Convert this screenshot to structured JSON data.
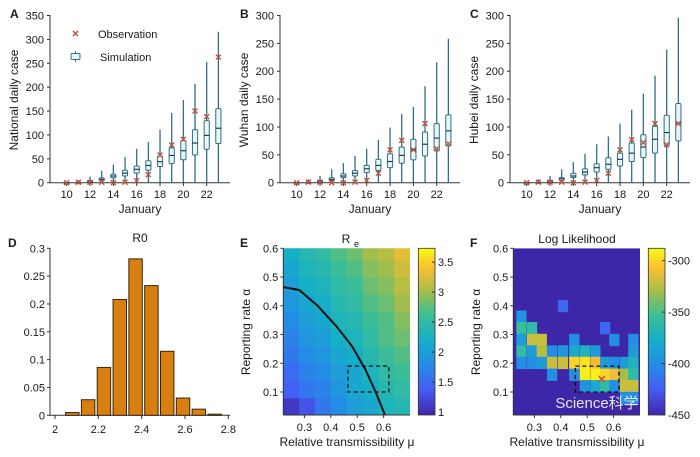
{
  "colors": {
    "observation": "#c0553a",
    "box_stroke": "#2f6f88",
    "box_fill": "#eaf5f8",
    "bar_fill": "#d8800f",
    "bar_stroke": "#3a2410"
  },
  "watermark": "Science科学",
  "chart_data": [
    {
      "panel": "A",
      "type": "box",
      "xlabel": "January",
      "ylabel": "National daily case",
      "ylim": [
        0,
        350
      ],
      "yticks": [
        0,
        50,
        100,
        150,
        200,
        250,
        300,
        350
      ],
      "xticks": [
        10,
        12,
        14,
        16,
        18,
        20,
        22
      ],
      "legend": {
        "observation": "Observation",
        "simulation": "Simulation",
        "placement": "top-left"
      },
      "x": [
        10,
        11,
        12,
        13,
        14,
        15,
        16,
        17,
        18,
        19,
        20,
        21,
        22,
        23
      ],
      "observation": [
        0,
        1,
        1,
        1,
        0,
        1,
        4,
        17,
        58,
        79,
        91,
        150,
        138,
        263
      ],
      "simulation": {
        "min": [
          0,
          0,
          0,
          0,
          0,
          0,
          0,
          0,
          0,
          0,
          0,
          0,
          0,
          0
        ],
        "q1": [
          0,
          0,
          1,
          4,
          10,
          14,
          20,
          26,
          34,
          40,
          48,
          58,
          70,
          82
        ],
        "median": [
          0,
          0,
          2,
          7,
          14,
          20,
          28,
          36,
          44,
          57,
          67,
          83,
          99,
          114
        ],
        "q3": [
          0,
          1,
          4,
          10,
          18,
          26,
          35,
          46,
          56,
          73,
          88,
          111,
          130,
          155
        ],
        "max": [
          1,
          5,
          13,
          25,
          38,
          54,
          71,
          85,
          111,
          146,
          173,
          207,
          253,
          316
        ]
      }
    },
    {
      "panel": "B",
      "type": "box",
      "xlabel": "January",
      "ylabel": "Wuhan daily case",
      "ylim": [
        0,
        300
      ],
      "yticks": [
        0,
        50,
        100,
        150,
        200,
        250,
        300
      ],
      "xticks": [
        10,
        12,
        14,
        16,
        18,
        20,
        22
      ],
      "x": [
        10,
        11,
        12,
        13,
        14,
        15,
        16,
        17,
        18,
        19,
        20,
        21,
        22,
        23
      ],
      "observation": [
        0,
        1,
        1,
        0,
        0,
        1,
        4,
        17,
        59,
        76,
        59,
        106,
        61,
        70
      ],
      "simulation": {
        "min": [
          0,
          0,
          0,
          0,
          0,
          0,
          0,
          0,
          0,
          0,
          0,
          0,
          0,
          0
        ],
        "q1": [
          0,
          0,
          1,
          4,
          9,
          12,
          18,
          22,
          27,
          35,
          41,
          48,
          57,
          66
        ],
        "median": [
          0,
          0,
          2,
          6,
          12,
          17,
          25,
          31,
          38,
          49,
          59,
          69,
          80,
          93
        ],
        "q3": [
          0,
          1,
          4,
          9,
          16,
          22,
          31,
          42,
          52,
          64,
          78,
          91,
          106,
          122
        ],
        "max": [
          1,
          6,
          12,
          24,
          35,
          48,
          61,
          77,
          99,
          123,
          136,
          173,
          216,
          258
        ]
      }
    },
    {
      "panel": "C",
      "type": "box",
      "xlabel": "January",
      "ylabel": "Hubei daily case",
      "ylim": [
        0,
        300
      ],
      "yticks": [
        0,
        50,
        100,
        150,
        200,
        250,
        300
      ],
      "xticks": [
        10,
        12,
        14,
        16,
        18,
        20,
        22
      ],
      "x": [
        10,
        11,
        12,
        13,
        14,
        15,
        16,
        17,
        18,
        19,
        20,
        21,
        22,
        23
      ],
      "observation": [
        0,
        1,
        1,
        1,
        0,
        1,
        4,
        17,
        59,
        77,
        72,
        106,
        68,
        106
      ],
      "simulation": {
        "min": [
          0,
          0,
          0,
          0,
          0,
          0,
          0,
          0,
          0,
          0,
          0,
          0,
          0,
          0
        ],
        "q1": [
          0,
          0,
          1,
          4,
          9,
          14,
          19,
          24,
          30,
          38,
          45,
          53,
          67,
          75
        ],
        "median": [
          0,
          0,
          2,
          7,
          12,
          19,
          27,
          33,
          42,
          53,
          64,
          78,
          90,
          107
        ],
        "q3": [
          0,
          1,
          4,
          9,
          17,
          25,
          34,
          45,
          53,
          71,
          86,
          101,
          121,
          142
        ],
        "max": [
          1,
          6,
          12,
          24,
          37,
          52,
          69,
          83,
          106,
          131,
          160,
          192,
          239,
          296
        ]
      }
    },
    {
      "panel": "D",
      "type": "bar",
      "title": "R0",
      "xlim": [
        2,
        2.8
      ],
      "xticks": [
        2,
        2.2,
        2.4,
        2.6,
        2.8
      ],
      "ylim": [
        0,
        0.3
      ],
      "yticks": [
        0,
        0.05,
        0.1,
        0.15,
        0.2,
        0.25,
        0.3
      ],
      "x": [
        2.08,
        2.153,
        2.226,
        2.299,
        2.372,
        2.445,
        2.518,
        2.591,
        2.664,
        2.737
      ],
      "values": [
        0.005,
        0.028,
        0.086,
        0.208,
        0.281,
        0.233,
        0.115,
        0.031,
        0.011,
        0.002
      ]
    },
    {
      "panel": "E",
      "type": "heatmap",
      "title": "R",
      "title_subscript": "e",
      "xlabel": "Relative transmissibility μ",
      "ylabel": "Reporting rate α",
      "xlim": [
        0.22,
        0.7
      ],
      "ylim": [
        0.02,
        0.6
      ],
      "xticks": [
        0.3,
        0.4,
        0.5,
        0.6
      ],
      "yticks": [
        0.1,
        0.2,
        0.3,
        0.4,
        0.5,
        0.6
      ],
      "clim": [
        0.95,
        3.73
      ],
      "colorbar_ticks": [
        1,
        1.5,
        2,
        2.5,
        3,
        3.5
      ],
      "colormap": "parula",
      "x": [
        0.25,
        0.31,
        0.37,
        0.43,
        0.49,
        0.55,
        0.61,
        0.67
      ],
      "y": [
        0.05,
        0.11,
        0.17,
        0.23,
        0.29,
        0.35,
        0.41,
        0.47,
        0.53,
        0.59
      ],
      "z": [
        [
          1.1,
          1.3,
          1.6,
          1.8,
          2.0,
          2.1,
          2.3,
          2.4
        ],
        [
          1.4,
          1.6,
          1.7,
          1.9,
          2.1,
          2.2,
          2.4,
          2.5
        ],
        [
          1.5,
          1.7,
          1.8,
          2.0,
          2.1,
          2.3,
          2.5,
          2.6
        ],
        [
          1.6,
          1.8,
          1.9,
          2.1,
          2.2,
          2.4,
          2.6,
          2.7
        ],
        [
          1.7,
          1.9,
          2.0,
          2.2,
          2.3,
          2.5,
          2.7,
          2.8
        ],
        [
          1.8,
          2.0,
          2.1,
          2.3,
          2.4,
          2.6,
          2.7,
          2.9
        ],
        [
          1.9,
          2.1,
          2.2,
          2.4,
          2.5,
          2.7,
          2.8,
          3.0
        ],
        [
          2.0,
          2.2,
          2.3,
          2.5,
          2.6,
          2.8,
          2.9,
          3.1
        ],
        [
          2.1,
          2.3,
          2.4,
          2.6,
          2.7,
          2.9,
          3.0,
          3.2
        ],
        [
          2.2,
          2.4,
          2.5,
          2.7,
          2.8,
          3.0,
          3.1,
          3.3
        ]
      ],
      "contour": [
        [
          0.22,
          0.465
        ],
        [
          0.28,
          0.455
        ],
        [
          0.35,
          0.4
        ],
        [
          0.42,
          0.33
        ],
        [
          0.48,
          0.26
        ],
        [
          0.53,
          0.18
        ],
        [
          0.57,
          0.1
        ],
        [
          0.605,
          0.02
        ]
      ],
      "dashed_box": {
        "x": [
          0.465,
          0.62
        ],
        "y": [
          0.1,
          0.19
        ]
      }
    },
    {
      "panel": "F",
      "type": "heatmap",
      "title": "Log Likelihood",
      "xlabel": "Relative transmissibility μ",
      "ylabel": "Reporting rate α",
      "xlim": [
        0.22,
        0.7
      ],
      "ylim": [
        0.02,
        0.6
      ],
      "xticks": [
        0.3,
        0.4,
        0.5,
        0.6
      ],
      "yticks": [
        0.1,
        0.2,
        0.3,
        0.4,
        0.5,
        0.6
      ],
      "clim": [
        -450,
        -288
      ],
      "colorbar_ticks": [
        -300,
        -350,
        -400,
        -450
      ],
      "colormap": "parula",
      "background": -450,
      "cells": [
        [
          0.407,
          0.4,
          -420
        ],
        [
          0.25,
          0.363,
          -395
        ],
        [
          0.25,
          0.323,
          -355
        ],
        [
          0.29,
          0.323,
          -360
        ],
        [
          0.567,
          0.323,
          -420
        ],
        [
          0.25,
          0.282,
          -390
        ],
        [
          0.29,
          0.282,
          -320
        ],
        [
          0.327,
          0.282,
          -320
        ],
        [
          0.45,
          0.282,
          -400
        ],
        [
          0.602,
          0.282,
          -400
        ],
        [
          0.674,
          0.282,
          -400
        ],
        [
          0.25,
          0.242,
          -360
        ],
        [
          0.29,
          0.242,
          -390
        ],
        [
          0.327,
          0.242,
          -325
        ],
        [
          0.366,
          0.242,
          -400
        ],
        [
          0.407,
          0.242,
          -395
        ],
        [
          0.45,
          0.242,
          -380
        ],
        [
          0.49,
          0.242,
          -370
        ],
        [
          0.53,
          0.242,
          -390
        ],
        [
          0.674,
          0.242,
          -390
        ],
        [
          0.25,
          0.202,
          -400
        ],
        [
          0.29,
          0.202,
          -400
        ],
        [
          0.327,
          0.202,
          -390
        ],
        [
          0.366,
          0.202,
          -320
        ],
        [
          0.407,
          0.202,
          -320
        ],
        [
          0.45,
          0.202,
          -300
        ],
        [
          0.49,
          0.202,
          -295
        ],
        [
          0.53,
          0.202,
          -310
        ],
        [
          0.567,
          0.202,
          -390
        ],
        [
          0.602,
          0.202,
          -400
        ],
        [
          0.642,
          0.202,
          -390
        ],
        [
          0.674,
          0.202,
          -370
        ],
        [
          0.366,
          0.161,
          -400
        ],
        [
          0.45,
          0.161,
          -400
        ],
        [
          0.49,
          0.161,
          -292
        ],
        [
          0.53,
          0.161,
          -292
        ],
        [
          0.567,
          0.161,
          -300
        ],
        [
          0.602,
          0.161,
          -310
        ],
        [
          0.642,
          0.161,
          -330
        ],
        [
          0.674,
          0.161,
          -360
        ],
        [
          0.49,
          0.121,
          -395
        ],
        [
          0.53,
          0.121,
          -380
        ],
        [
          0.567,
          0.121,
          -360
        ],
        [
          0.602,
          0.121,
          -400
        ],
        [
          0.642,
          0.121,
          -320
        ],
        [
          0.674,
          0.121,
          -320
        ],
        [
          0.642,
          0.08,
          -400
        ],
        [
          0.674,
          0.08,
          -400
        ]
      ],
      "max_likelihood": [
        0.555,
        0.145
      ],
      "dashed_box": {
        "x": [
          0.455,
          0.62
        ],
        "y": [
          0.1,
          0.19
        ]
      }
    }
  ]
}
